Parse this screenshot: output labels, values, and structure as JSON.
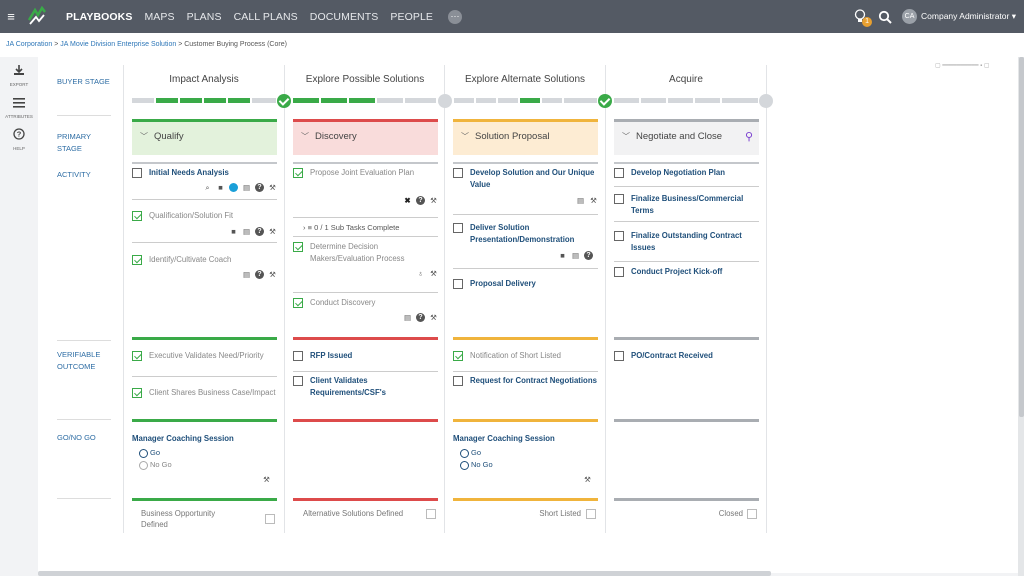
{
  "nav": {
    "items": [
      "PLAYBOOKS",
      "MAPS",
      "PLANS",
      "CALL PLANS",
      "DOCUMENTS",
      "PEOPLE"
    ],
    "more": "···",
    "badge_count": "1",
    "avatar_initials": "CA",
    "user_name": "Company Administrator"
  },
  "breadcrumb": {
    "link1": "JA Corporation",
    "link2": "JA Movie Division Enterprise Solution",
    "current": "Customer Buying Process (Core)"
  },
  "tools": {
    "export": "EXPORT",
    "attributes": "ATTRIBUTES",
    "help": "HELP"
  },
  "row_labels": {
    "buyer_stage": "BUYER STAGE",
    "primary_stage": "PRIMARY STAGE",
    "activity": "ACTIVITY",
    "verifiable_outcome": "VERIFIABLE OUTCOME",
    "go_no_go": "GO/NO GO"
  },
  "colors": {
    "green": "#3aaa48",
    "red": "#dd4b4b",
    "orange": "#f0b43c",
    "gray": "#a9adb2"
  },
  "columns": [
    {
      "buyer_stage": "Impact Analysis",
      "primary_stage": "Qualify",
      "activities": [
        {
          "label": "Initial Needs Analysis",
          "checked": false
        },
        {
          "label": "Qualification/Solution Fit",
          "checked": true
        },
        {
          "label": "Identify/Cultivate Coach",
          "checked": true
        }
      ],
      "outcomes": [
        {
          "label": "Executive Validates Need/Priority",
          "checked": true
        },
        {
          "label": "Client Shares Business Case/Impact",
          "checked": true
        }
      ],
      "go_title": "Manager Coaching Session",
      "go_options": [
        "Go",
        "No Go"
      ],
      "exit": "Business Opportunity Defined"
    },
    {
      "buyer_stage": "Explore Possible Solutions",
      "primary_stage": "Discovery",
      "activities": [
        {
          "label": "Propose Joint Evaluation Plan",
          "checked": true
        },
        {
          "label": "Determine Decision Makers/Evaluation Process",
          "checked": true
        },
        {
          "label": "Conduct Discovery",
          "checked": true
        }
      ],
      "subtasks": "0 / 1 Sub Tasks Complete",
      "outcomes": [
        {
          "label": "RFP Issued",
          "checked": false
        },
        {
          "label": "Client Validates Requirements/CSF's",
          "checked": false
        }
      ],
      "exit": "Alternative Solutions Defined"
    },
    {
      "buyer_stage": "Explore Alternate Solutions",
      "primary_stage": "Solution Proposal",
      "activities": [
        {
          "label": "Develop Solution and Our Unique Value",
          "checked": false
        },
        {
          "label": "Deliver Solution Presentation/Demonstration",
          "checked": false
        },
        {
          "label": "Proposal Delivery",
          "checked": false
        }
      ],
      "outcomes": [
        {
          "label": "Notification of Short Listed",
          "checked": true
        },
        {
          "label": "Request for Contract Negotiations",
          "checked": false
        }
      ],
      "go_title": "Manager Coaching Session",
      "go_options": [
        "Go",
        "No Go"
      ],
      "exit": "Short Listed"
    },
    {
      "buyer_stage": "Acquire",
      "primary_stage": "Negotiate and Close",
      "activities": [
        {
          "label": "Develop Negotiation Plan",
          "checked": false
        },
        {
          "label": "Finalize Business/Commercial Terms",
          "checked": false
        },
        {
          "label": "Finalize Outstanding Contract Issues",
          "checked": false
        },
        {
          "label": "Conduct Project Kick-off",
          "checked": false
        }
      ],
      "outcomes": [
        {
          "label": "PO/Contract Received",
          "checked": false
        }
      ],
      "exit": "Closed"
    }
  ]
}
